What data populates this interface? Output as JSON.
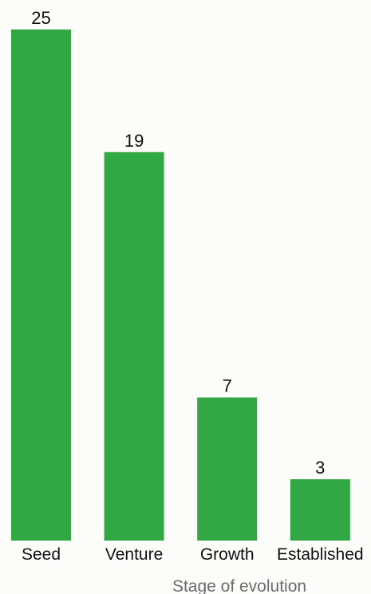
{
  "chart_data": {
    "type": "bar",
    "categories": [
      "Seed",
      "Venture",
      "Growth",
      "Established"
    ],
    "values": [
      25,
      19,
      7,
      3
    ],
    "title": "",
    "xlabel": "Stage of evolution",
    "ylabel": "",
    "ylim": [
      0,
      25
    ],
    "grid": false,
    "legend": "none",
    "data_labels": true,
    "colors": {
      "bar": "#31a843",
      "text": "#111111",
      "axis_title": "#6b6b6b",
      "background": "#fcfcfa"
    }
  }
}
